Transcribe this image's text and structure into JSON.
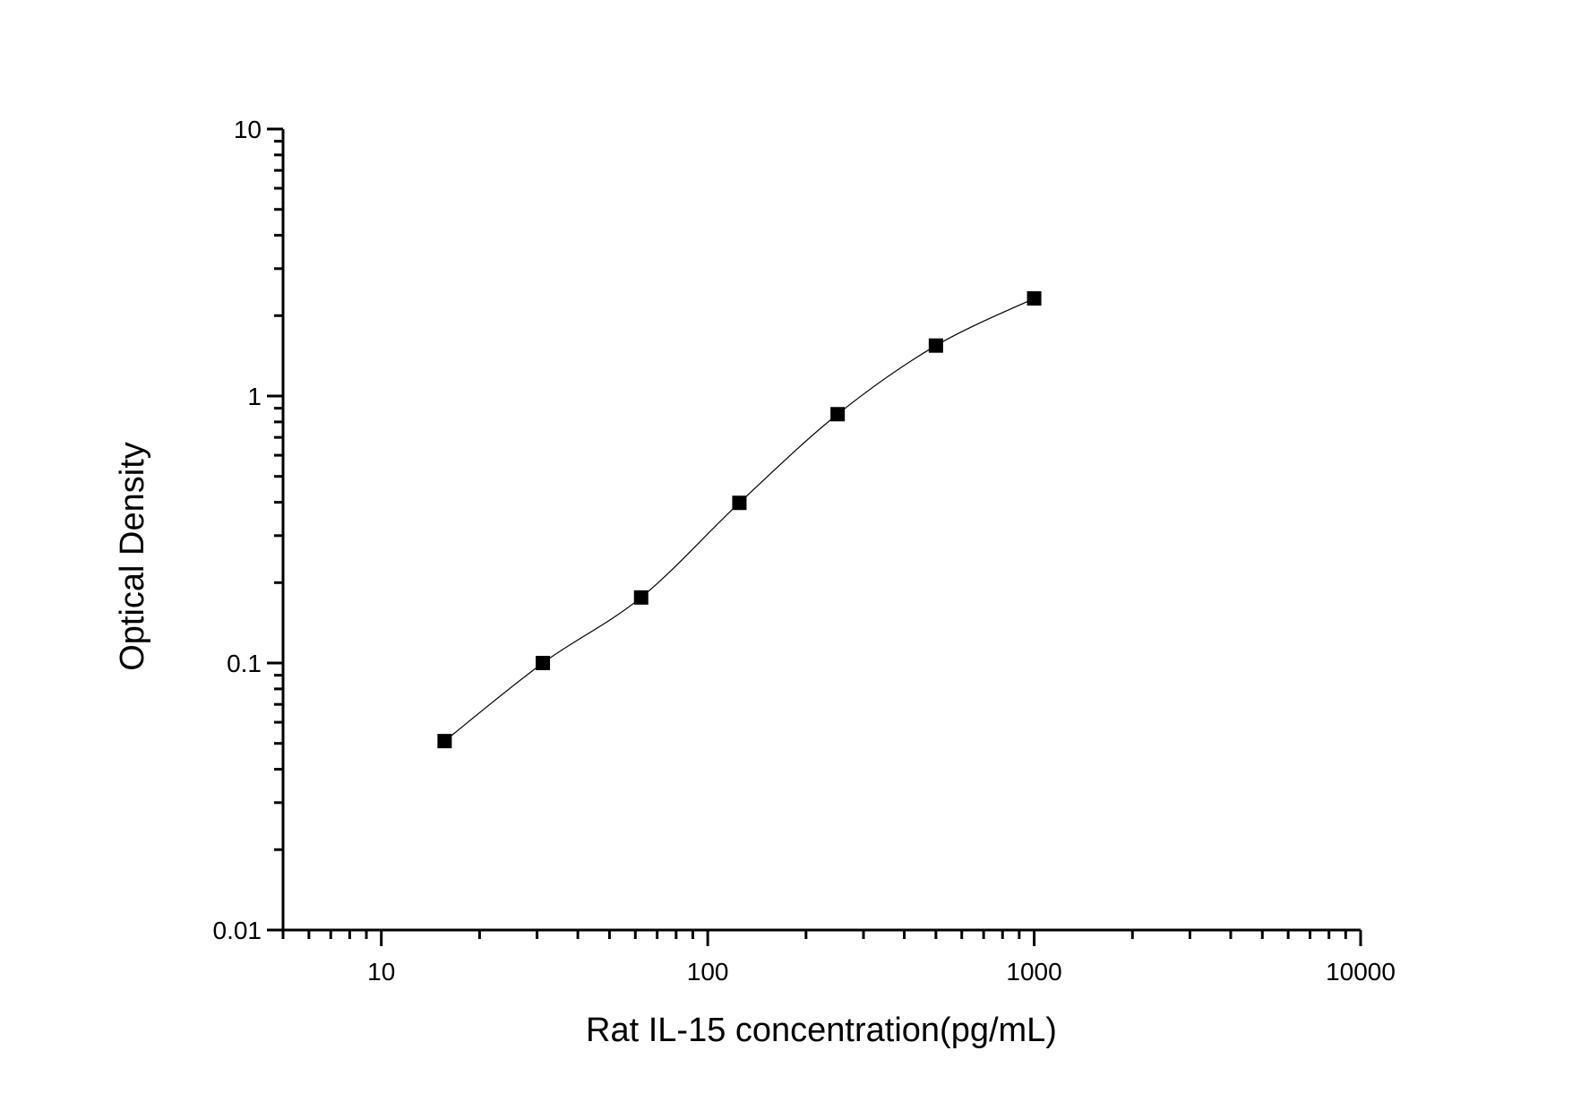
{
  "chart_data": {
    "type": "scatter",
    "title": "",
    "xlabel": "Rat IL-15 concentration(pg/mL)",
    "ylabel": "Optical Density",
    "x_scale": "log",
    "y_scale": "log",
    "xlim": [
      5,
      10000
    ],
    "ylim": [
      0.01,
      10
    ],
    "x_tick_labels": [
      "10",
      "100",
      "1000",
      "10000"
    ],
    "y_tick_labels": [
      "0.01",
      "0.1",
      "1",
      "10"
    ],
    "grid": false,
    "legend": "none",
    "marker": "square",
    "colors": {
      "marker": "#000000",
      "curve": "#000000"
    },
    "series": [
      {
        "x": [
          15.63,
          31.25,
          62.5,
          125,
          250,
          500,
          1000
        ],
        "y": [
          0.051,
          0.1,
          0.176,
          0.398,
          0.855,
          1.545,
          2.32
        ],
        "fit_curve": true
      }
    ]
  }
}
